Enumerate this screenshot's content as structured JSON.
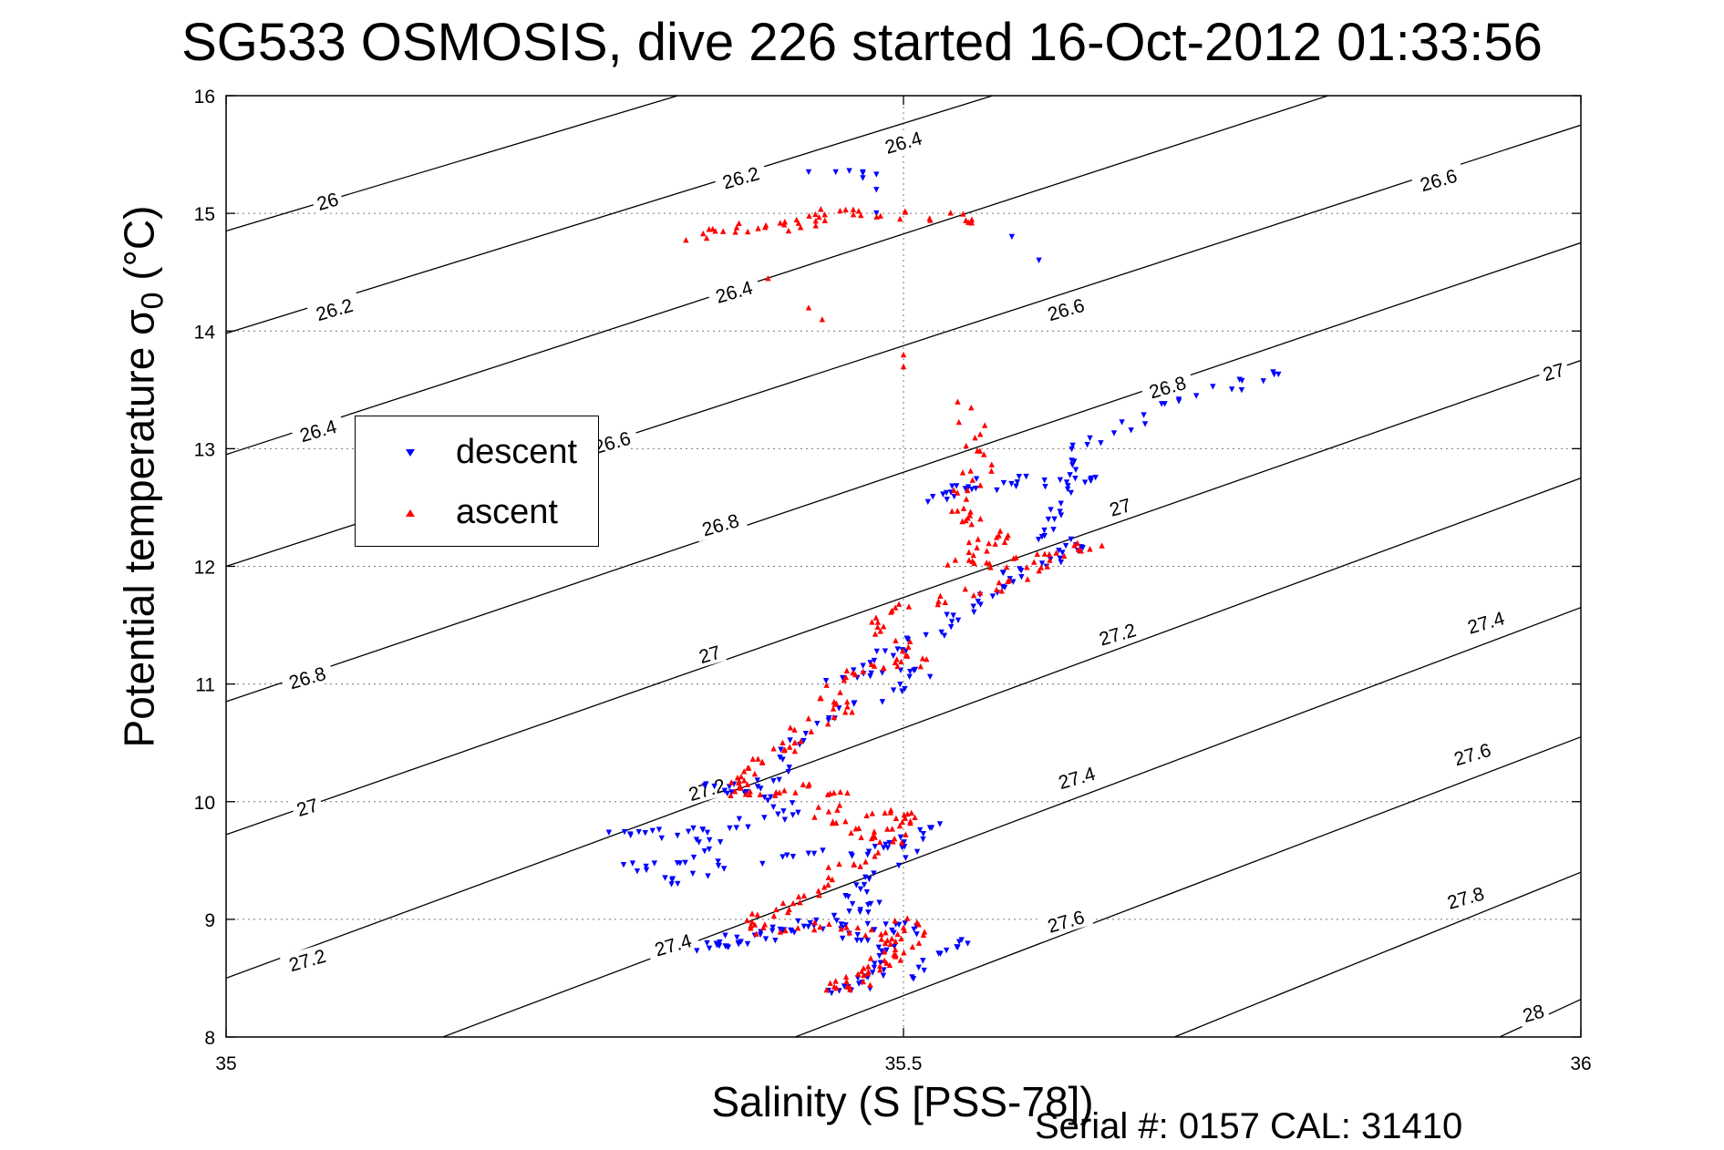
{
  "chart_data": {
    "type": "scatter",
    "title": "SG533 OSMOSIS, dive 226 started 16-Oct-2012 01:33:56",
    "xlabel": "Salinity (S [PSS-78])",
    "ylabel_main": "Potential temperature σ",
    "ylabel_sub": "0",
    "ylabel_unit": " (°C)",
    "footer": "Serial #: 0157  CAL: 31410",
    "xlim": [
      35,
      36
    ],
    "ylim": [
      8,
      16
    ],
    "x_ticks": [
      35,
      35.5,
      36
    ],
    "x_tick_labels": [
      "35",
      "35.5",
      "36"
    ],
    "y_ticks": [
      8,
      9,
      10,
      11,
      12,
      13,
      14,
      15,
      16
    ],
    "y_tick_labels": [
      "8",
      "9",
      "10",
      "11",
      "12",
      "13",
      "14",
      "15",
      "16"
    ],
    "grid": true,
    "legend_position": "left",
    "colors": {
      "descent": "#0000ff",
      "ascent": "#ff0000",
      "contour": "#000000"
    },
    "density_contours": [
      {
        "level": "26",
        "lines": [
          [
            35.0,
            14.85
          ],
          [
            36.0,
            18.3
          ]
        ]
      },
      {
        "level": "26.2",
        "lines": [
          [
            35.0,
            13.98
          ],
          [
            36.0,
            17.55
          ]
        ]
      },
      {
        "level": "26.4",
        "lines": [
          [
            35.0,
            12.95
          ],
          [
            36.0,
            16.7
          ]
        ]
      },
      {
        "level": "26.6",
        "lines": [
          [
            35.0,
            12.0
          ],
          [
            36.0,
            15.75
          ]
        ]
      },
      {
        "level": "26.8",
        "lines": [
          [
            35.0,
            10.85
          ],
          [
            36.0,
            14.75
          ]
        ]
      },
      {
        "level": "27",
        "lines": [
          [
            35.0,
            9.72
          ],
          [
            36.0,
            13.75
          ]
        ]
      },
      {
        "level": "27.2",
        "lines": [
          [
            35.0,
            8.5
          ],
          [
            36.0,
            12.75
          ]
        ]
      },
      {
        "level": "27.4",
        "lines": [
          [
            35.16,
            8.0
          ],
          [
            36.0,
            11.65
          ]
        ]
      },
      {
        "level": "27.6",
        "lines": [
          [
            35.42,
            8.0
          ],
          [
            36.0,
            10.55
          ]
        ]
      },
      {
        "level": "27.8",
        "lines": [
          [
            35.7,
            8.0
          ],
          [
            36.0,
            9.4
          ]
        ]
      },
      {
        "level": "28",
        "lines": [
          [
            35.94,
            8.0
          ],
          [
            36.0,
            8.32
          ]
        ]
      }
    ],
    "contour_labels": [
      {
        "text": "26",
        "x": 35.075,
        "y": 15.1,
        "angle": -16
      },
      {
        "text": "26.2",
        "x": 35.38,
        "y": 15.3,
        "angle": -16
      },
      {
        "text": "26.2",
        "x": 35.08,
        "y": 14.18,
        "angle": -16
      },
      {
        "text": "26.4",
        "x": 35.5,
        "y": 15.6,
        "angle": -16
      },
      {
        "text": "26.4",
        "x": 35.375,
        "y": 14.33,
        "angle": -16
      },
      {
        "text": "26.4",
        "x": 35.068,
        "y": 13.15,
        "angle": -16
      },
      {
        "text": "26.6",
        "x": 35.895,
        "y": 15.28,
        "angle": -16
      },
      {
        "text": "26.6",
        "x": 35.62,
        "y": 14.18,
        "angle": -16
      },
      {
        "text": "26.6",
        "x": 35.285,
        "y": 13.05,
        "angle": -16
      },
      {
        "text": "26.8",
        "x": 35.695,
        "y": 13.52,
        "angle": -16
      },
      {
        "text": "26.8",
        "x": 35.365,
        "y": 12.35,
        "angle": -16
      },
      {
        "text": "26.8",
        "x": 35.06,
        "y": 11.05,
        "angle": -16
      },
      {
        "text": "27",
        "x": 35.98,
        "y": 13.65,
        "angle": -16
      },
      {
        "text": "27",
        "x": 35.66,
        "y": 12.5,
        "angle": -16
      },
      {
        "text": "27",
        "x": 35.357,
        "y": 11.25,
        "angle": -16
      },
      {
        "text": "27",
        "x": 35.06,
        "y": 9.95,
        "angle": -16
      },
      {
        "text": "27.4",
        "x": 35.93,
        "y": 11.52,
        "angle": -16
      },
      {
        "text": "27.2",
        "x": 35.658,
        "y": 11.42,
        "angle": -16
      },
      {
        "text": "27.2",
        "x": 35.355,
        "y": 10.1,
        "angle": -16
      },
      {
        "text": "27.2",
        "x": 35.06,
        "y": 8.65,
        "angle": -16
      },
      {
        "text": "27.4",
        "x": 35.628,
        "y": 10.2,
        "angle": -16
      },
      {
        "text": "27.4",
        "x": 35.33,
        "y": 8.78,
        "angle": -16
      },
      {
        "text": "27.6",
        "x": 35.92,
        "y": 10.4,
        "angle": -16
      },
      {
        "text": "27.6",
        "x": 35.62,
        "y": 8.98,
        "angle": -16
      },
      {
        "text": "27.8",
        "x": 35.915,
        "y": 9.18,
        "angle": -16
      },
      {
        "text": "28",
        "x": 35.965,
        "y": 8.2,
        "angle": -16
      }
    ],
    "series": [
      {
        "name": "descent",
        "marker": "triangle-down",
        "path": [
          [
            35.78,
            13.65
          ],
          [
            35.75,
            13.55
          ],
          [
            35.7,
            13.4
          ],
          [
            35.66,
            13.15
          ],
          [
            35.62,
            12.95
          ],
          [
            35.64,
            12.75
          ],
          [
            35.6,
            12.7
          ],
          [
            35.55,
            12.65
          ],
          [
            35.52,
            12.55
          ],
          [
            35.56,
            12.72
          ],
          [
            35.63,
            12.74
          ],
          [
            35.615,
            12.45
          ],
          [
            35.605,
            12.25
          ],
          [
            35.63,
            12.15
          ],
          [
            35.61,
            12.05
          ],
          [
            35.58,
            11.95
          ],
          [
            35.57,
            11.8
          ],
          [
            35.55,
            11.65
          ],
          [
            35.53,
            11.45
          ],
          [
            35.5,
            11.3
          ],
          [
            35.48,
            11.2
          ],
          [
            35.45,
            11.05
          ],
          [
            35.52,
            11.15
          ],
          [
            35.5,
            10.95
          ],
          [
            35.45,
            10.75
          ],
          [
            35.42,
            10.55
          ],
          [
            35.41,
            10.25
          ],
          [
            35.38,
            10.1
          ],
          [
            35.36,
            10.15
          ],
          [
            35.4,
            10.05
          ],
          [
            35.42,
            9.9
          ],
          [
            35.38,
            9.8
          ],
          [
            35.33,
            9.75
          ],
          [
            35.28,
            9.7
          ],
          [
            35.36,
            9.7
          ],
          [
            35.35,
            9.5
          ],
          [
            35.3,
            9.45
          ],
          [
            35.33,
            9.3
          ],
          [
            35.37,
            9.45
          ],
          [
            35.44,
            9.55
          ],
          [
            35.48,
            9.6
          ],
          [
            35.5,
            9.65
          ],
          [
            35.52,
            9.85
          ],
          [
            35.49,
            9.4
          ],
          [
            35.46,
            9.25
          ],
          [
            35.48,
            9.1
          ],
          [
            35.45,
            9.0
          ],
          [
            35.42,
            8.92
          ],
          [
            35.4,
            8.85
          ],
          [
            35.37,
            8.8
          ],
          [
            35.35,
            8.75
          ],
          [
            35.38,
            8.85
          ],
          [
            35.43,
            8.95
          ],
          [
            35.48,
            8.95
          ],
          [
            35.52,
            8.92
          ],
          [
            35.45,
            8.85
          ],
          [
            35.49,
            8.75
          ],
          [
            35.48,
            8.6
          ],
          [
            35.47,
            8.45
          ],
          [
            35.44,
            8.4
          ],
          [
            35.5,
            8.5
          ],
          [
            35.53,
            8.75
          ],
          [
            35.55,
            8.8
          ]
        ],
        "path_spread": 0.04,
        "points_per_segment": 4,
        "extra": [
          [
            35.47,
            15.35
          ],
          [
            35.46,
            15.36
          ],
          [
            35.47,
            15.34
          ],
          [
            35.48,
            15.33
          ],
          [
            35.47,
            15.3
          ],
          [
            35.48,
            15.2
          ],
          [
            35.48,
            15.0
          ],
          [
            35.58,
            14.8
          ],
          [
            35.6,
            14.6
          ],
          [
            35.45,
            15.35
          ],
          [
            35.43,
            15.35
          ]
        ]
      },
      {
        "name": "ascent",
        "marker": "triangle-up",
        "path": [
          [
            35.34,
            14.8
          ],
          [
            35.36,
            14.88
          ],
          [
            35.4,
            14.88
          ],
          [
            35.42,
            14.9
          ],
          [
            35.44,
            14.95
          ],
          [
            35.45,
            15.02
          ],
          [
            35.48,
            15.0
          ],
          [
            35.53,
            14.98
          ],
          [
            35.56,
            14.95
          ],
          [
            35.55,
            13.2
          ],
          [
            35.56,
            12.95
          ],
          [
            35.55,
            12.7
          ],
          [
            35.54,
            12.5
          ],
          [
            35.55,
            12.4
          ],
          [
            35.57,
            12.25
          ],
          [
            35.56,
            12.2
          ],
          [
            35.54,
            12.05
          ],
          [
            35.56,
            12.0
          ],
          [
            35.6,
            12.1
          ],
          [
            35.64,
            12.2
          ],
          [
            35.6,
            12.0
          ],
          [
            35.58,
            11.85
          ],
          [
            35.54,
            11.75
          ],
          [
            35.5,
            11.65
          ],
          [
            35.48,
            11.5
          ],
          [
            35.5,
            11.35
          ],
          [
            35.51,
            11.2
          ],
          [
            35.49,
            11.15
          ],
          [
            35.46,
            11.1
          ],
          [
            35.44,
            10.9
          ],
          [
            35.46,
            10.8
          ],
          [
            35.43,
            10.65
          ],
          [
            35.42,
            10.5
          ],
          [
            35.4,
            10.4
          ],
          [
            35.38,
            10.3
          ],
          [
            35.39,
            10.15
          ],
          [
            35.37,
            10.1
          ],
          [
            35.4,
            10.05
          ],
          [
            35.43,
            10.15
          ],
          [
            35.45,
            10.05
          ],
          [
            35.44,
            9.85
          ],
          [
            35.47,
            9.75
          ],
          [
            35.49,
            9.65
          ],
          [
            35.5,
            9.8
          ],
          [
            35.51,
            9.9
          ],
          [
            35.48,
            9.95
          ],
          [
            35.47,
            9.5
          ],
          [
            35.45,
            9.4
          ],
          [
            35.43,
            9.2
          ],
          [
            35.41,
            9.1
          ],
          [
            35.39,
            9.0
          ],
          [
            35.4,
            8.9
          ],
          [
            35.44,
            8.95
          ],
          [
            35.46,
            8.9
          ],
          [
            35.5,
            8.85
          ],
          [
            35.49,
            8.75
          ],
          [
            35.48,
            8.6
          ],
          [
            35.46,
            8.5
          ],
          [
            35.45,
            8.4
          ],
          [
            35.47,
            8.5
          ],
          [
            35.5,
            8.7
          ],
          [
            35.51,
            8.9
          ],
          [
            35.5,
            9.0
          ]
        ],
        "path_spread": 0.04,
        "points_per_segment": 4,
        "extra": [
          [
            35.4,
            14.45
          ],
          [
            35.43,
            14.2
          ],
          [
            35.44,
            14.1
          ],
          [
            35.5,
            13.8
          ],
          [
            35.5,
            13.7
          ],
          [
            35.54,
            13.4
          ],
          [
            35.55,
            13.35
          ],
          [
            35.56,
            13.2
          ]
        ]
      }
    ]
  },
  "legend": {
    "items": [
      {
        "label": "descent",
        "color": "#0000ff"
      },
      {
        "label": "ascent",
        "color": "#ff0000"
      }
    ]
  }
}
